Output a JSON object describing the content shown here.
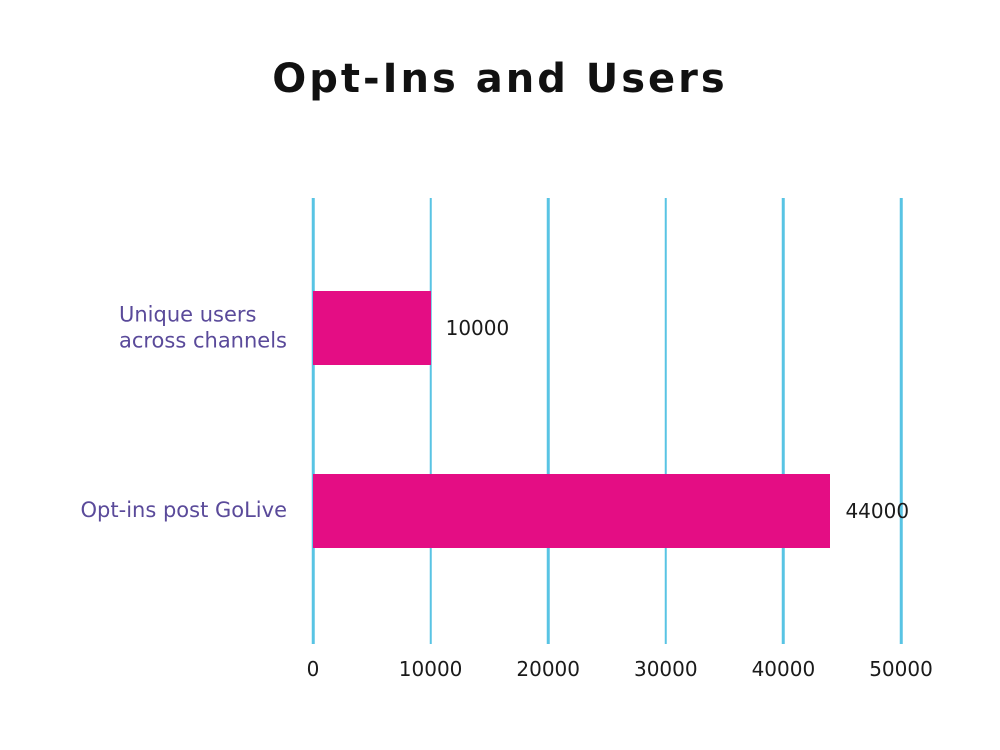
{
  "chart_data": {
    "type": "bar",
    "orientation": "horizontal",
    "title": "Opt-Ins and Users",
    "categories": [
      "Unique users across channels",
      "Opt-ins post GoLive"
    ],
    "category_label_lines": [
      [
        "Unique users",
        "across channels"
      ],
      [
        "Opt-ins post GoLive"
      ]
    ],
    "values": [
      10000,
      44000
    ],
    "value_labels": [
      "10000",
      "44000"
    ],
    "xlim": [
      0,
      50000
    ],
    "xticks": [
      0,
      10000,
      20000,
      30000,
      40000,
      50000
    ],
    "xtick_labels": [
      "0",
      "10000",
      "20000",
      "30000",
      "40000",
      "50000"
    ],
    "grid": "vertical-gridlines-on",
    "legend": "none",
    "colors": {
      "bar": "#e40d84",
      "gridline": "#58c4e4",
      "category_label": "#5a4a9a",
      "value_label": "#1a1a1a",
      "tick_label": "#1a1a1a",
      "title": "#111111",
      "background": "#ffffff"
    }
  }
}
